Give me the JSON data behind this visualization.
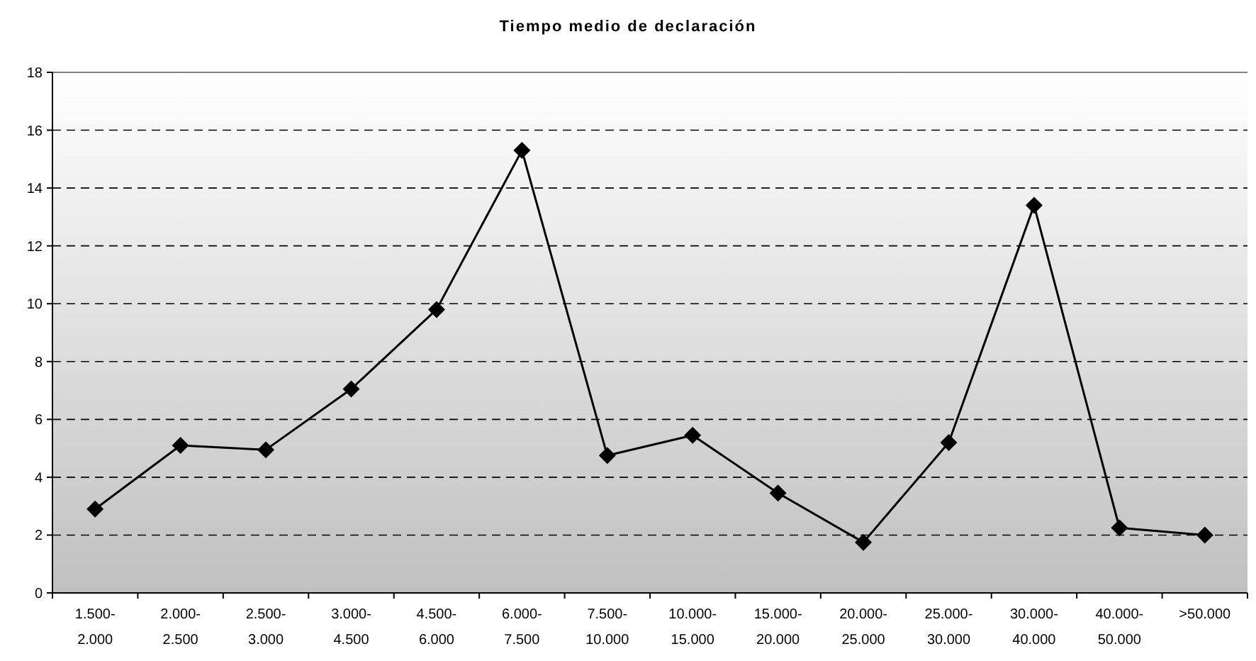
{
  "chart_data": {
    "type": "line",
    "title": "Tiempo medio de declaración",
    "categories": [
      "1.500-2.000",
      "2.000-2.500",
      "2.500-3.000",
      "3.000-4.500",
      "4.500-6.000",
      "6.000-7.500",
      "7.500-10.000",
      "10.000-15.000",
      "15.000-20.000",
      "20.000-25.000",
      "25.000-30.000",
      "30.000-40.000",
      "40.000-50.000",
      ">50.000"
    ],
    "series": [
      {
        "color": "#000000",
        "values": [
          2.9,
          5.1,
          4.95,
          7.05,
          9.8,
          15.3,
          4.75,
          5.45,
          3.45,
          1.75,
          5.2,
          13.4,
          2.25,
          2.0
        ]
      }
    ],
    "ylim": [
      0,
      18
    ],
    "yticks": [
      0,
      2,
      4,
      6,
      8,
      10,
      12,
      14,
      16,
      18
    ],
    "grid": "y",
    "marker": "diamond",
    "line_style": "solid"
  }
}
